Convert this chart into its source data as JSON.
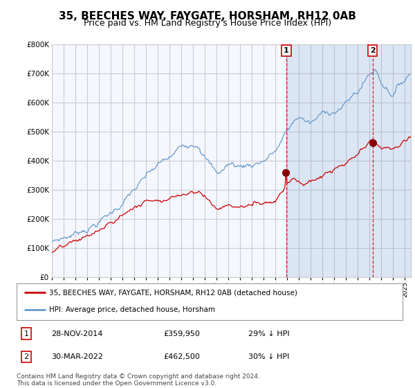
{
  "title": "35, BEECHES WAY, FAYGATE, HORSHAM, RH12 0AB",
  "subtitle": "Price paid vs. HM Land Registry's House Price Index (HPI)",
  "title_fontsize": 11,
  "subtitle_fontsize": 9,
  "background_color": "#ffffff",
  "plot_bg_color": "#f5f7ff",
  "grid_color": "#cccccc",
  "hpi_color": "#6699cc",
  "hpi_fill_color": "#dce8f5",
  "price_color": "#cc0000",
  "highlight_color": "#dce8f5",
  "marker1_x": 2014.92,
  "marker2_x": 2022.25,
  "marker1_date": "28-NOV-2014",
  "marker1_price": "£359,950",
  "marker1_note": "29% ↓ HPI",
  "marker2_date": "30-MAR-2022",
  "marker2_price": "£462,500",
  "marker2_note": "30% ↓ HPI",
  "legend_line1": "35, BEECHES WAY, FAYGATE, HORSHAM, RH12 0AB (detached house)",
  "legend_line2": "HPI: Average price, detached house, Horsham",
  "footer": "Contains HM Land Registry data © Crown copyright and database right 2024.\nThis data is licensed under the Open Government Licence v3.0.",
  "ylim": [
    0,
    800000
  ],
  "yticks": [
    0,
    100000,
    200000,
    300000,
    400000,
    500000,
    600000,
    700000,
    800000
  ],
  "xlim_start": 1995,
  "xlim_end": 2025.5
}
